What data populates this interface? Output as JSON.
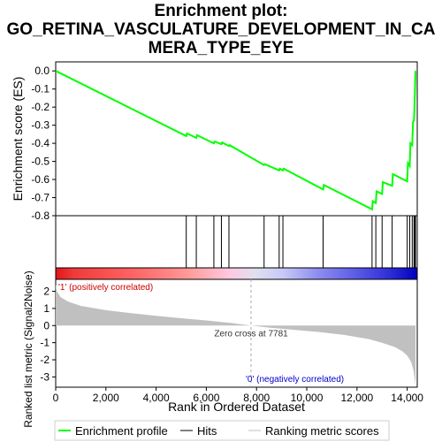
{
  "title_lines": [
    "Enrichment plot:",
    "GO_RETINA_VASCULATURE_DEVELOPMENT_IN_CA",
    "MERA_TYPE_EYE"
  ],
  "chart_data": {
    "type": "line",
    "title": "Enrichment plot: GO_RETINA_VASCULATURE_DEVELOPMENT_IN_CAMERA_TYPE_EYE",
    "top_panel": {
      "ylabel": "Enrichment score (ES)",
      "ylim": [
        -0.8,
        0.05
      ],
      "yticks": [
        0.0,
        -0.1,
        -0.2,
        -0.3,
        -0.4,
        -0.5,
        -0.6,
        -0.7,
        -0.8
      ],
      "ytick_labels": [
        "0.0",
        "-0.1",
        "-0.2",
        "-0.3",
        "-0.4",
        "-0.5",
        "-0.6",
        "-0.7",
        "-0.8"
      ],
      "series": [
        {
          "name": "Enrichment profile",
          "color": "#00ff00",
          "points": [
            [
              0,
              0.0
            ],
            [
              5200,
              -0.36
            ],
            [
              5230,
              -0.345
            ],
            [
              5600,
              -0.37
            ],
            [
              5630,
              -0.355
            ],
            [
              6300,
              -0.4
            ],
            [
              6330,
              -0.39
            ],
            [
              6600,
              -0.405
            ],
            [
              6630,
              -0.395
            ],
            [
              6900,
              -0.415
            ],
            [
              6930,
              -0.41
            ],
            [
              8300,
              -0.52
            ],
            [
              8330,
              -0.515
            ],
            [
              8900,
              -0.55
            ],
            [
              8930,
              -0.54
            ],
            [
              9050,
              -0.55
            ],
            [
              9080,
              -0.54
            ],
            [
              10650,
              -0.655
            ],
            [
              10680,
              -0.63
            ],
            [
              12600,
              -0.765
            ],
            [
              12630,
              -0.72
            ],
            [
              12750,
              -0.73
            ],
            [
              12780,
              -0.665
            ],
            [
              13000,
              -0.68
            ],
            [
              13030,
              -0.615
            ],
            [
              13400,
              -0.635
            ],
            [
              13430,
              -0.57
            ],
            [
              14000,
              -0.61
            ],
            [
              14030,
              -0.51
            ],
            [
              14100,
              -0.525
            ],
            [
              14130,
              -0.4
            ],
            [
              14200,
              -0.41
            ],
            [
              14230,
              -0.28
            ],
            [
              14270,
              -0.275
            ],
            [
              14300,
              -0.14
            ],
            [
              14330,
              0.0
            ]
          ]
        }
      ]
    },
    "hits": {
      "name": "Hits",
      "ranks": [
        5200,
        5600,
        6300,
        6600,
        6900,
        8300,
        8900,
        9050,
        10650,
        12600,
        12750,
        13000,
        13400,
        14000,
        14100,
        14200,
        14270,
        14300,
        14330
      ]
    },
    "gradient_bar": {
      "left_color": "#ff0000",
      "right_color": "#0000ff",
      "left_label": "'1' (positively correlated)",
      "right_label": "'0' (negatively correlated)",
      "left_label_color": "#cc0000",
      "right_label_color": "#0000cc"
    },
    "bottom_panel": {
      "ylabel": "Ranked list metric (Signal2Noise)",
      "ylim": [
        -3.6,
        2.7
      ],
      "yticks": [
        2,
        1,
        0,
        -1,
        -2,
        -3
      ],
      "ytick_labels": [
        "2",
        "1",
        "0",
        "-1",
        "-2",
        "-3"
      ],
      "series": [
        {
          "name": "Ranking metric scores",
          "color": "#c0c0c0",
          "points": [
            [
              0,
              2.4
            ],
            [
              50,
              2.0
            ],
            [
              200,
              1.65
            ],
            [
              500,
              1.4
            ],
            [
              1000,
              1.15
            ],
            [
              2000,
              0.9
            ],
            [
              3000,
              0.72
            ],
            [
              4000,
              0.57
            ],
            [
              5000,
              0.43
            ],
            [
              6000,
              0.3
            ],
            [
              7000,
              0.15
            ],
            [
              7781,
              0.0
            ],
            [
              8500,
              -0.12
            ],
            [
              9500,
              -0.25
            ],
            [
              10500,
              -0.38
            ],
            [
              11500,
              -0.55
            ],
            [
              12500,
              -0.8
            ],
            [
              13000,
              -1.0
            ],
            [
              13500,
              -1.25
            ],
            [
              13800,
              -1.5
            ],
            [
              14000,
              -1.75
            ],
            [
              14150,
              -2.1
            ],
            [
              14250,
              -2.6
            ],
            [
              14330,
              -3.45
            ]
          ]
        }
      ],
      "zero_cross_label": "Zero cross at 7781",
      "zero_cross_rank": 7781
    },
    "xlabel": "Rank in Ordered Dataset",
    "xlim": [
      0,
      14330
    ],
    "xticks": [
      0,
      2000,
      4000,
      6000,
      8000,
      10000,
      12000,
      14000
    ],
    "xtick_labels": [
      "0",
      "2,000",
      "4,000",
      "6,000",
      "8,000",
      "10,000",
      "12,000",
      "14,000"
    ],
    "legend": {
      "placement": "bottom",
      "entries": [
        {
          "label": "Enrichment profile",
          "color": "#00ff00",
          "style": "line"
        },
        {
          "label": "Hits",
          "color": "#000000",
          "style": "line"
        },
        {
          "label": "Ranking metric scores",
          "color": "#c0c0c0",
          "style": "line"
        }
      ]
    }
  }
}
